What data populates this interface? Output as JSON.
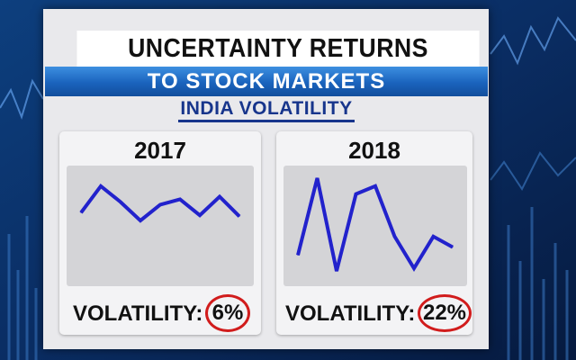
{
  "headline": "UNCERTAINTY RETURNS",
  "subheadline": "TO STOCK MARKETS",
  "section_title": "INDIA VOLATILITY",
  "panels": [
    {
      "year": "2017",
      "volatility_label": "VOLATILITY:",
      "volatility_value": "6%"
    },
    {
      "year": "2018",
      "volatility_label": "VOLATILITY:",
      "volatility_value": "22%"
    }
  ],
  "colors": {
    "line": "#2222cc",
    "highlight_circle": "#d11c1c",
    "banner": "#1a63bd",
    "section_title": "#17358c"
  },
  "chart_data": [
    {
      "type": "line",
      "title": "2017",
      "x": [
        1,
        2,
        3,
        4,
        5,
        6,
        7,
        8,
        9
      ],
      "y": [
        0.25,
        0.75,
        0.45,
        0.1,
        0.4,
        0.5,
        0.2,
        0.55,
        0.18
      ],
      "ylim": [
        -1,
        1
      ],
      "grid": false
    },
    {
      "type": "line",
      "title": "2018",
      "x": [
        1,
        2,
        3,
        4,
        5,
        6,
        7,
        8,
        9
      ],
      "y": [
        -0.55,
        0.9,
        -0.85,
        0.6,
        0.75,
        -0.2,
        -0.8,
        -0.2,
        -0.4
      ],
      "ylim": [
        -1,
        1
      ],
      "grid": false
    }
  ]
}
